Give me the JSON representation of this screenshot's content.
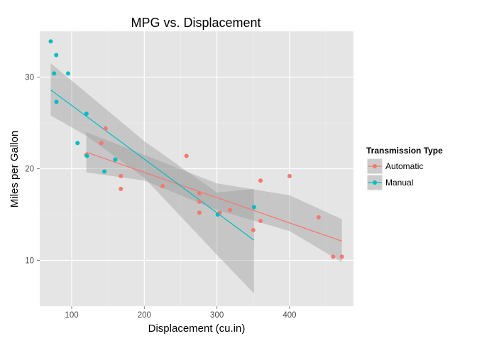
{
  "chart_data": {
    "type": "scatter",
    "title": "MPG vs. Displacement",
    "xlabel": "Displacement (cu.in)",
    "ylabel": "Miles per Gallon",
    "xlim": [
      56,
      488
    ],
    "ylim": [
      5,
      35
    ],
    "x_ticks": [
      100,
      200,
      300,
      400
    ],
    "y_ticks": [
      10,
      20,
      30
    ],
    "grid": true,
    "legend": {
      "title": "Transmission Type",
      "position": "right"
    },
    "series": [
      {
        "name": "Automatic",
        "color": "#F8766D",
        "points": [
          [
            258,
            21.4
          ],
          [
            360,
            18.7
          ],
          [
            225,
            18.1
          ],
          [
            360,
            14.3
          ],
          [
            146.7,
            24.4
          ],
          [
            140.8,
            22.8
          ],
          [
            167.6,
            19.2
          ],
          [
            167.6,
            17.8
          ],
          [
            275.8,
            16.4
          ],
          [
            275.8,
            17.3
          ],
          [
            275.8,
            15.2
          ],
          [
            472,
            10.4
          ],
          [
            460,
            10.4
          ],
          [
            440,
            14.7
          ],
          [
            120.1,
            21.5
          ],
          [
            318,
            15.5
          ],
          [
            304,
            15.2
          ],
          [
            350,
            13.3
          ],
          [
            400,
            19.2
          ]
        ],
        "fit": {
          "x": [
            120.1,
            472
          ],
          "y": [
            21.8,
            12.1
          ]
        },
        "band": {
          "x": [
            120.1,
            200,
            300,
            400,
            472
          ],
          "lower": [
            19.6,
            18.7,
            15.5,
            13.2,
            9.8
          ],
          "upper": [
            24.0,
            21.5,
            18.4,
            17.1,
            14.5
          ]
        }
      },
      {
        "name": "Manual",
        "color": "#00BFC4",
        "points": [
          [
            160,
            21.0
          ],
          [
            160,
            21.0
          ],
          [
            108,
            22.8
          ],
          [
            78.7,
            32.4
          ],
          [
            75.7,
            30.4
          ],
          [
            71.1,
            33.9
          ],
          [
            79,
            27.3
          ],
          [
            120.3,
            26.0
          ],
          [
            95.1,
            30.4
          ],
          [
            351,
            15.8
          ],
          [
            145,
            19.7
          ],
          [
            121,
            21.4
          ],
          [
            301,
            15.0
          ]
        ],
        "fit": {
          "x": [
            71.1,
            351
          ],
          "y": [
            28.6,
            12.2
          ]
        },
        "band": {
          "x": [
            71.1,
            120,
            200,
            300,
            351
          ],
          "lower": [
            25.8,
            23.6,
            19.0,
            10.6,
            6.4
          ],
          "upper": [
            31.5,
            28.3,
            23.0,
            17.4,
            17.8
          ]
        }
      }
    ]
  }
}
